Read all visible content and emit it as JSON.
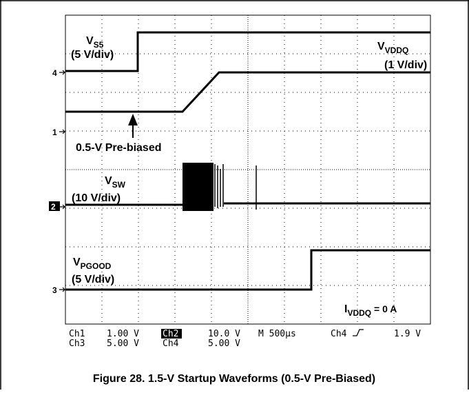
{
  "figure": {
    "traces": [
      {
        "name": "V",
        "sub": "S5",
        "scale": "(5 V/div)"
      },
      {
        "name": "V",
        "sub": "VDDQ",
        "scale": "(1 V/div)"
      },
      {
        "name": "V",
        "sub": "SW",
        "scale": "(10 V/div)"
      },
      {
        "name": "V",
        "sub": "PGOOD",
        "scale": "(5 V/div)"
      }
    ],
    "markers": [
      "4",
      "1",
      "2",
      "3"
    ],
    "annotation": "0.5-V Pre-biased",
    "load": {
      "name": "I",
      "sub": "VDDQ",
      "suffix": " = 0 A"
    },
    "readout": [
      [
        "Ch1",
        "1.00 V",
        "Ch2",
        "10.0 V",
        "M 500µs",
        "Ch4",
        "1.9 V"
      ],
      [
        "Ch3",
        "5.00 V",
        "Ch4",
        "5.00 V"
      ]
    ],
    "caption": "Figure 28. 1.5-V Startup Waveforms (0.5-V Pre-Biased)"
  }
}
